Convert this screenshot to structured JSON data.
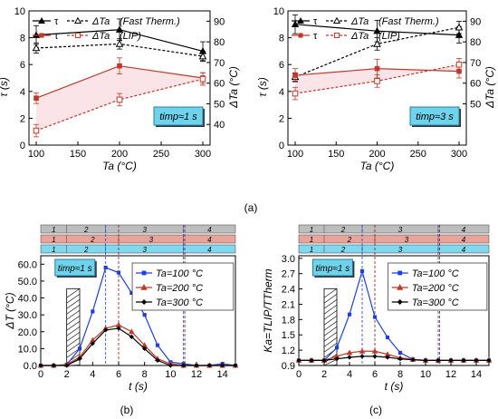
{
  "panel_labels": {
    "a": "(a)",
    "b": "(b)",
    "c": "(c)"
  },
  "chart_data": [
    {
      "id": "a1",
      "type": "line",
      "xlabel": "Ta (°C)",
      "ylabel_left": "τ (s)",
      "ylabel_right": "ΔTa (°C)",
      "xlim": [
        100,
        300
      ],
      "xticks": [
        100,
        150,
        200,
        250,
        300
      ],
      "ylim_left": [
        0,
        10
      ],
      "yticks_left": [
        0,
        2,
        4,
        6,
        8,
        10
      ],
      "ylim_right": [
        30,
        95
      ],
      "yticks_right": [
        40,
        50,
        60,
        70,
        80,
        90
      ],
      "annotation": "timp≈1 s",
      "legend": [
        {
          "label": "τ",
          "label2": "ΔTa",
          "note": "(Fast Therm.)",
          "color": "#000000"
        },
        {
          "label": "τ",
          "label2": "ΔTa",
          "note": "(LIP)",
          "color": "#c0392b"
        }
      ],
      "series": [
        {
          "x": [
            100,
            200,
            300
          ],
          "y": [
            8.2,
            8.6,
            7.0
          ],
          "err": [
            0.7,
            0.8,
            0.7
          ],
          "axis": "left",
          "color": "#000000",
          "dash": false,
          "marker": "filled-triangle"
        },
        {
          "x": [
            100,
            200,
            300
          ],
          "y": [
            77,
            79,
            73
          ],
          "err": [
            2.5,
            2.5,
            2.5
          ],
          "axis": "right",
          "color": "#000000",
          "dash": true,
          "marker": "open-triangle"
        },
        {
          "x": [
            100,
            200,
            300
          ],
          "y": [
            3.5,
            5.9,
            5.0
          ],
          "err": [
            0.4,
            0.6,
            0.4
          ],
          "axis": "left",
          "color": "#c0392b",
          "dash": false,
          "marker": "filled-square"
        },
        {
          "x": [
            100,
            200,
            300
          ],
          "y": [
            37,
            52,
            62
          ],
          "err": [
            3,
            3,
            3
          ],
          "axis": "right",
          "color": "#c0392b",
          "dash": true,
          "marker": "open-square"
        }
      ]
    },
    {
      "id": "a2",
      "type": "line",
      "xlabel": "Ta (°C)",
      "ylabel_left": "τ (s)",
      "ylabel_right": "ΔTa (°C)",
      "xlim": [
        100,
        300
      ],
      "xticks": [
        100,
        150,
        200,
        250,
        300
      ],
      "ylim_left": [
        0,
        10
      ],
      "yticks_left": [
        0,
        2,
        4,
        6,
        8,
        10
      ],
      "ylim_right": [
        30,
        95
      ],
      "yticks_right": [
        50,
        60,
        70,
        80,
        90
      ],
      "annotation": "timp≈3 s",
      "legend": [
        {
          "label": "τ",
          "label2": "ΔTa",
          "note": "(Fast Therm.)",
          "color": "#000000"
        },
        {
          "label": "τ",
          "label2": "ΔTa",
          "note": "(LIP)",
          "color": "#c0392b"
        }
      ],
      "series": [
        {
          "x": [
            100,
            200,
            300
          ],
          "y": [
            9.0,
            8.5,
            8.2
          ],
          "err": [
            0.7,
            0.8,
            0.6
          ],
          "axis": "left",
          "color": "#000000",
          "dash": false,
          "marker": "filled-triangle"
        },
        {
          "x": [
            100,
            200,
            300
          ],
          "y": [
            63,
            79,
            87
          ],
          "err": [
            2,
            3,
            3
          ],
          "axis": "right",
          "color": "#000000",
          "dash": true,
          "marker": "open-triangle"
        },
        {
          "x": [
            100,
            200,
            300
          ],
          "y": [
            5.2,
            5.7,
            5.5
          ],
          "err": [
            0.5,
            0.7,
            0.5
          ],
          "axis": "left",
          "color": "#c0392b",
          "dash": false,
          "marker": "filled-square"
        },
        {
          "x": [
            100,
            200,
            300
          ],
          "y": [
            55,
            61,
            69
          ],
          "err": [
            3,
            3,
            3
          ],
          "axis": "right",
          "color": "#c0392b",
          "dash": true,
          "marker": "open-square"
        }
      ]
    },
    {
      "id": "b",
      "type": "line",
      "xlabel": "t (s)",
      "ylabel": "ΔT (°C)",
      "xlim": [
        0,
        15
      ],
      "xticks": [
        0,
        2,
        4,
        6,
        8,
        10,
        12,
        14
      ],
      "ylim": [
        0,
        65
      ],
      "yticks": [
        0,
        10,
        20,
        30,
        40,
        50,
        60
      ],
      "annotation": "timp≈1 s",
      "stage_rows": [
        {
          "color": "#bdbdbd",
          "bounds": [
            0,
            2,
            5,
            11,
            15
          ],
          "labels": [
            "1",
            "2",
            "3",
            "4"
          ]
        },
        {
          "color": "#e8a39b",
          "bounds": [
            0,
            2,
            6,
            11,
            15
          ],
          "labels": [
            "1",
            "2",
            "3",
            "4"
          ]
        },
        {
          "color": "#7fd8ee",
          "bounds": [
            0,
            2,
            5,
            11,
            15
          ],
          "labels": [
            "1",
            "2",
            "3",
            "4"
          ]
        }
      ],
      "vlines": [
        {
          "x": 5,
          "color": "#1f3fd6"
        },
        {
          "x": 6,
          "color": "#8b1a1a"
        },
        {
          "x": 11,
          "color": "#1f3fd6"
        },
        {
          "x": 11.1,
          "color": "#8b1a1a"
        }
      ],
      "hatch": [
        2,
        3
      ],
      "series": [
        {
          "name": "Ta=100 °C",
          "x": [
            0,
            1,
            2,
            3,
            4,
            5,
            6,
            7,
            8,
            9,
            10,
            11,
            12,
            13,
            14,
            15
          ],
          "y": [
            0,
            0,
            0.5,
            10,
            32,
            58,
            55,
            43,
            30,
            12,
            2,
            1,
            0,
            0,
            1,
            0
          ],
          "color": "#1f3fd6",
          "marker": "square"
        },
        {
          "name": "Ta=200 °C",
          "x": [
            0,
            1,
            2,
            3,
            4,
            5,
            6,
            7,
            8,
            9,
            10,
            11,
            12,
            13,
            14,
            15
          ],
          "y": [
            0,
            0,
            0.5,
            5,
            15,
            22,
            24,
            20,
            12,
            4,
            1,
            0,
            0,
            0,
            0,
            0
          ],
          "color": "#c0392b",
          "marker": "triangle"
        },
        {
          "name": "Ta=300 °C",
          "x": [
            0,
            1,
            2,
            3,
            4,
            5,
            6,
            7,
            8,
            9,
            10,
            11,
            12,
            13,
            14,
            15
          ],
          "y": [
            0,
            0,
            0,
            4,
            13,
            21,
            22,
            17,
            10,
            3,
            0,
            0,
            0,
            0,
            0,
            0
          ],
          "color": "#000000",
          "marker": "diamond"
        }
      ]
    },
    {
      "id": "c",
      "type": "line",
      "xlabel": "t (s)",
      "ylabel": "Ka=TLIP/TTherm",
      "xlim": [
        0,
        15
      ],
      "xticks": [
        0,
        2,
        4,
        6,
        8,
        10,
        12,
        14
      ],
      "ylim": [
        0.9,
        3.05
      ],
      "yticks": [
        0.9,
        1.2,
        1.5,
        1.8,
        2.1,
        2.4,
        2.7,
        3.0
      ],
      "annotation": "timp≈1 s",
      "stage_rows": [
        {
          "color": "#bdbdbd",
          "bounds": [
            0,
            2,
            5,
            11,
            15
          ],
          "labels": [
            "1",
            "2",
            "3",
            "4"
          ]
        },
        {
          "color": "#e8a39b",
          "bounds": [
            0,
            2,
            6,
            11,
            15
          ],
          "labels": [
            "1",
            "2",
            "3",
            "4"
          ]
        },
        {
          "color": "#7fd8ee",
          "bounds": [
            0,
            2,
            5,
            11,
            15
          ],
          "labels": [
            "1",
            "2",
            "3",
            "4"
          ]
        }
      ],
      "vlines": [
        {
          "x": 5,
          "color": "#1f3fd6"
        },
        {
          "x": 6,
          "color": "#8b1a1a"
        },
        {
          "x": 11,
          "color": "#1f3fd6"
        },
        {
          "x": 11.1,
          "color": "#8b1a1a"
        }
      ],
      "hatch": [
        2,
        3
      ],
      "series": [
        {
          "name": "Ta=100 °C",
          "x": [
            0,
            1,
            2,
            3,
            4,
            5,
            6,
            7,
            8,
            9,
            10,
            11,
            12,
            13,
            14,
            15
          ],
          "y": [
            1.0,
            1.0,
            1.0,
            1.25,
            1.9,
            2.75,
            1.85,
            1.45,
            1.15,
            1.02,
            1.0,
            1.0,
            1.0,
            1.0,
            1.0,
            1.0
          ],
          "color": "#1f3fd6",
          "marker": "square"
        },
        {
          "name": "Ta=200 °C",
          "x": [
            0,
            1,
            2,
            3,
            4,
            5,
            6,
            7,
            8,
            9,
            10,
            11,
            12,
            13,
            14,
            15
          ],
          "y": [
            1.0,
            1.0,
            1.0,
            1.08,
            1.15,
            1.18,
            1.18,
            1.12,
            1.05,
            1.02,
            1.0,
            1.0,
            1.0,
            1.0,
            1.0,
            1.0
          ],
          "color": "#c0392b",
          "marker": "triangle"
        },
        {
          "name": "Ta=300 °C",
          "x": [
            0,
            1,
            2,
            3,
            4,
            5,
            6,
            7,
            8,
            9,
            10,
            11,
            12,
            13,
            14,
            15
          ],
          "y": [
            1.0,
            1.0,
            1.0,
            1.03,
            1.06,
            1.08,
            1.08,
            1.06,
            1.03,
            1.01,
            1.0,
            1.0,
            1.0,
            1.0,
            1.0,
            1.0
          ],
          "color": "#000000",
          "marker": "diamond"
        }
      ]
    }
  ]
}
